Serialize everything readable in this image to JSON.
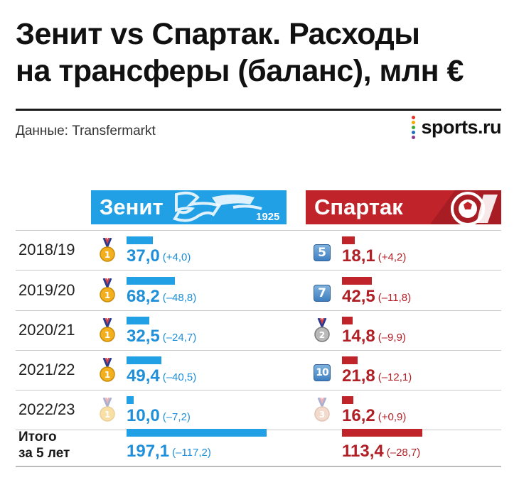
{
  "title": {
    "line1": "Зенит vs Спартак. Расходы",
    "line2": "на трансферы (баланс), млн €"
  },
  "source": "Данные: Transfermarkt",
  "brand": "sports.ru",
  "colors": {
    "zenit": "#21a0e6",
    "spartak": "#c1232b",
    "zenit_text": "#1e8fd8",
    "spartak_text": "#b01f26"
  },
  "teams": {
    "zenit": "Зенит",
    "spartak": "Спартак",
    "zenit_logo_year": "1925"
  },
  "chart_data": {
    "type": "bar",
    "categories": [
      "2018/19",
      "2019/20",
      "2020/21",
      "2021/22",
      "2022/23"
    ],
    "series": [
      {
        "name": "Зенит",
        "values": [
          37.0,
          68.2,
          32.5,
          49.4,
          10.0
        ],
        "labels": [
          "37,0",
          "68,2",
          "32,5",
          "49,4",
          "10,0"
        ],
        "balance_labels": [
          "(+4,0)",
          "(–48,8)",
          "(–24,7)",
          "(–40,5)",
          "(–7,2)"
        ],
        "places": [
          "1",
          "1",
          "1",
          "1",
          "1"
        ]
      },
      {
        "name": "Спартак",
        "values": [
          18.1,
          42.5,
          14.8,
          21.8,
          16.2
        ],
        "labels": [
          "18,1",
          "42,5",
          "14,8",
          "21,8",
          "16,2"
        ],
        "balance_labels": [
          "(+4,2)",
          "(–11,8)",
          "(–9,9)",
          "(–12,1)",
          "(+0,9)"
        ],
        "places": [
          "5",
          "7",
          "2",
          "10",
          "3"
        ]
      }
    ],
    "totals": {
      "label_line1": "Итого",
      "label_line2": "за 5 лет",
      "zenit": {
        "value": 197.1,
        "label": "197,1",
        "balance_label": "(–117,2)"
      },
      "spartak": {
        "value": 113.4,
        "label": "113,4",
        "balance_label": "(–28,7)"
      }
    }
  }
}
